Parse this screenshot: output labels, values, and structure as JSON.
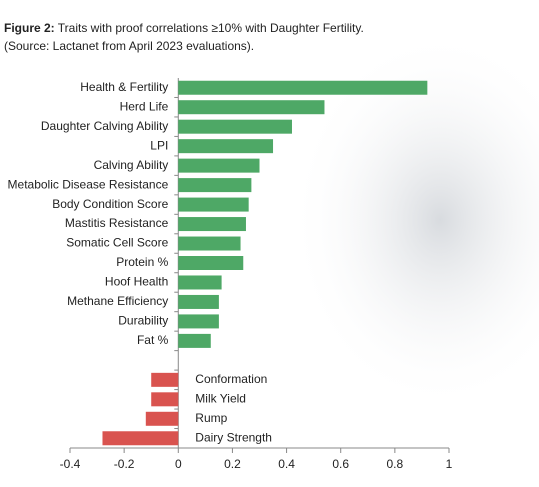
{
  "chart_data": {
    "type": "hbar",
    "figure_label": "Figure 2:",
    "title": "Traits with proof correlations ≥10% with Daughter Fertility.",
    "subtitle": "(Source: Lactanet from April 2023 evaluations).",
    "categories": [
      "Health & Fertility",
      "Herd Life",
      "Daughter Calving Ability",
      "LPI",
      "Calving Ability",
      "Metabolic Disease Resistance",
      "Body Condition Score",
      "Mastitis Resistance",
      "Somatic Cell Score",
      "Protein %",
      "Hoof Health",
      "Methane Efficiency",
      "Durability",
      "Fat %",
      null,
      "Conformation",
      "Milk Yield",
      "Rump",
      "Dairy Strength"
    ],
    "values": [
      0.92,
      0.54,
      0.42,
      0.35,
      0.3,
      0.27,
      0.26,
      0.25,
      0.23,
      0.24,
      0.16,
      0.15,
      0.15,
      0.12,
      null,
      -0.1,
      -0.1,
      -0.12,
      -0.28
    ],
    "positive_color": "#4ea866",
    "negative_color": "#d9534f",
    "xlim": [
      -0.4,
      1
    ],
    "xticks": [
      -0.4,
      -0.2,
      0,
      0.2,
      0.4,
      0.6,
      0.8,
      1
    ]
  }
}
